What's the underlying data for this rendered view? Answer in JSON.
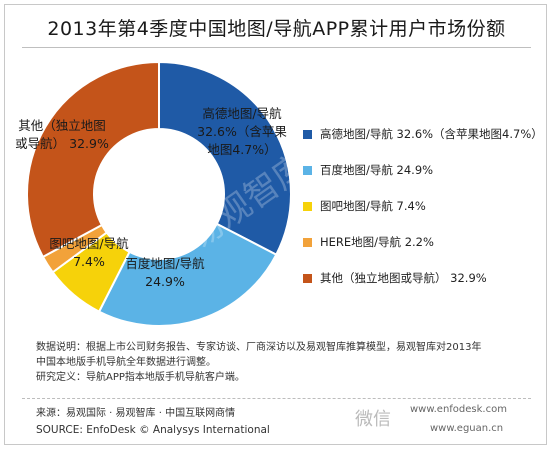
{
  "title": "2013年第4季度中国地图/导航APP累计用户市场份额",
  "chart_data": {
    "type": "pie",
    "donut": true,
    "title": "2013年第4季度中国地图/导航APP累计用户市场份额",
    "series": [
      {
        "name": "",
        "labels": [
          "高德地图/导航",
          "百度地图/导航",
          "图吧地图/导航",
          "HERE地图/导航",
          "其他（独立地图或导航）"
        ],
        "values": [
          32.6,
          24.9,
          7.4,
          2.2,
          32.9
        ]
      }
    ],
    "colors": [
      "#1f5aa6",
      "#5bb3e6",
      "#f6d20a",
      "#f2a23a",
      "#c4541a"
    ],
    "slice_labels": [
      [
        "高德地图/导航",
        "32.6%（含苹果",
        "地图4.7%）"
      ],
      [
        "百度地图/导航",
        "24.9%"
      ],
      [
        "图吧地图/导航",
        "7.4%"
      ],
      [],
      [
        "其他（独立地图",
        "或导航） 32.9%"
      ]
    ],
    "slice_label_colors": [
      "#1a1a1a",
      "#1a1a1a",
      "#1a1a1a",
      "#1a1a1a",
      "#1a1a1a"
    ],
    "legend": [
      "高德地图/导航 32.6%（含苹果地图4.7%）",
      "百度地图/导航 24.9%",
      "图吧地图/导航 7.4%",
      "HERE地图/导航 2.2%",
      "其他（独立地图或导航） 32.9%"
    ],
    "legend_position": "right",
    "watermark": "易观智库"
  },
  "notes": [
    "数据说明：根据上市公司财务报告、专家访谈、厂商深访以及易观智库推算模型，易观智库对2013年",
    "中国本地版手机导航全年数据进行调整。",
    "研究定义：导航APP指本地版手机导航客户端。"
  ],
  "source": {
    "cn": "来源：易观国际 · 易观智库 · 中国互联网商情",
    "en": "SOURCE: EnfoDesk © Analysys International"
  },
  "watermarks": {
    "url1": "www.enfodesk.com",
    "url2": "www.eguan.cn",
    "wechat": "微信"
  }
}
